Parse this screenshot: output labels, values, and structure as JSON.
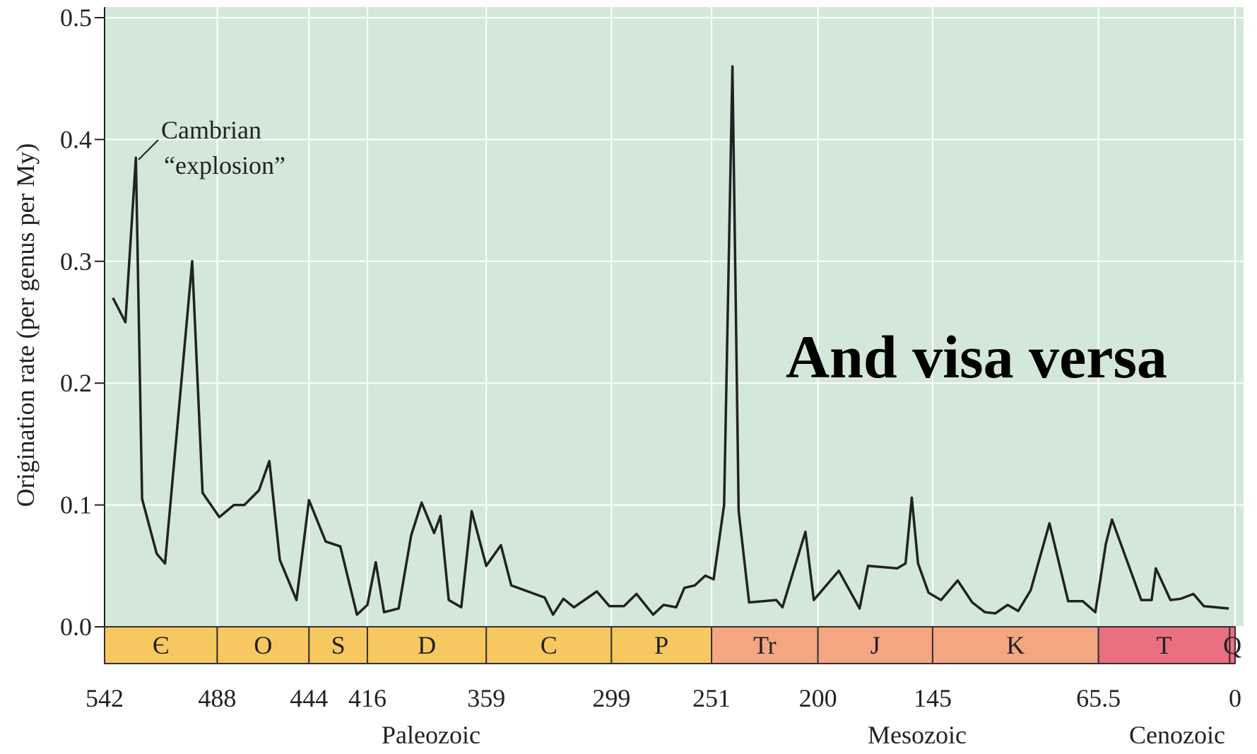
{
  "chart_data": {
    "type": "line",
    "y_label": "Origination rate (per genus per My)",
    "overlay_text": "And visa versa",
    "annotation": [
      "Cambrian",
      "“explosion”"
    ],
    "xlim": [
      542,
      0
    ],
    "xticks": [
      542,
      488,
      444,
      416,
      359,
      299,
      251,
      200,
      145,
      65.5,
      0
    ],
    "ylim": [
      0,
      0.5
    ],
    "yticks": [
      {
        "value": 0,
        "label": "0.0"
      },
      0.1,
      0.2,
      0.3,
      0.4,
      0.5
    ],
    "grid": true,
    "background": "#d3e8d9",
    "periods": [
      {
        "name": "Є",
        "start": 542,
        "end": 488,
        "color": "#f6c85f"
      },
      {
        "name": "O",
        "start": 488,
        "end": 444,
        "color": "#f6c85f"
      },
      {
        "name": "S",
        "start": 444,
        "end": 416,
        "color": "#f6c85f"
      },
      {
        "name": "D",
        "start": 416,
        "end": 359,
        "color": "#f6c85f"
      },
      {
        "name": "C",
        "start": 359,
        "end": 299,
        "color": "#f6c85f"
      },
      {
        "name": "P",
        "start": 299,
        "end": 251,
        "color": "#f6c85f"
      },
      {
        "name": "Tr",
        "start": 251,
        "end": 200,
        "color": "#f4a582"
      },
      {
        "name": "J",
        "start": 200,
        "end": 145,
        "color": "#f4a582"
      },
      {
        "name": "K",
        "start": 145,
        "end": 65.5,
        "color": "#f4a582"
      },
      {
        "name": "T",
        "start": 65.5,
        "end": 2.6,
        "color": "#ea6f80"
      },
      {
        "name": "Q",
        "start": 2.6,
        "end": 0,
        "color": "#ea6f80"
      }
    ],
    "eras": [
      "Paleozoic",
      "Mesozoic",
      "Cenozoic"
    ],
    "series": [
      {
        "color": "#222222",
        "x": [
          538,
          532,
          527,
          524,
          517,
          513,
          500,
          495,
          487,
          480,
          475,
          468,
          463,
          458,
          450,
          444,
          436,
          429,
          421,
          416,
          412,
          408,
          401,
          395,
          390,
          384,
          381,
          377,
          371,
          366,
          359,
          352,
          347,
          331,
          327,
          322,
          317,
          306,
          300,
          293,
          287,
          279,
          274,
          268,
          264,
          259,
          254,
          250,
          245,
          241,
          238,
          233,
          220,
          217,
          206,
          202,
          190,
          180,
          176,
          162,
          158,
          155,
          152,
          147,
          141,
          133,
          126,
          120,
          115,
          109,
          104,
          98,
          89,
          80,
          73,
          67,
          62,
          59,
          45,
          40,
          38,
          31,
          26,
          20,
          15,
          3
        ],
        "values": [
          0.27,
          0.25,
          0.385,
          0.105,
          0.06,
          0.052,
          0.3,
          0.11,
          0.09,
          0.1,
          0.1,
          0.112,
          0.136,
          0.055,
          0.022,
          0.104,
          0.07,
          0.066,
          0.01,
          0.018,
          0.053,
          0.012,
          0.015,
          0.075,
          0.102,
          0.077,
          0.091,
          0.022,
          0.016,
          0.095,
          0.05,
          0.067,
          0.034,
          0.024,
          0.01,
          0.023,
          0.016,
          0.029,
          0.017,
          0.017,
          0.027,
          0.01,
          0.018,
          0.016,
          0.032,
          0.034,
          0.042,
          0.039,
          0.1,
          0.46,
          0.095,
          0.02,
          0.022,
          0.016,
          0.078,
          0.022,
          0.046,
          0.015,
          0.05,
          0.048,
          0.052,
          0.106,
          0.052,
          0.028,
          0.022,
          0.038,
          0.02,
          0.012,
          0.011,
          0.018,
          0.013,
          0.03,
          0.085,
          0.021,
          0.021,
          0.012,
          0.068,
          0.088,
          0.022,
          0.022,
          0.048,
          0.022,
          0.023,
          0.027,
          0.017,
          0.015
        ]
      }
    ]
  }
}
